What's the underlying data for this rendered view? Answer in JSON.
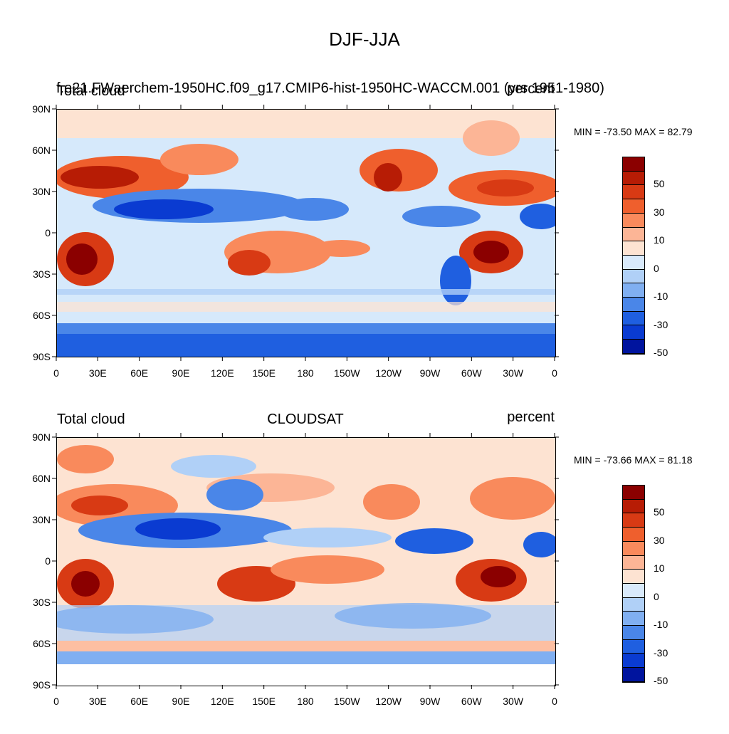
{
  "main_title": "DJF-JJA",
  "panels": [
    {
      "left_string": "Total cloud",
      "center_string": "f.e21.FWaerchem-1950HC.f09_g17.CMIP6-hist-1950HC-WACCM.001 (yrs 1951-1980)",
      "right_string": "percent",
      "stats": "MIN = -73.50 MAX =  82.79"
    },
    {
      "left_string": "Total cloud",
      "center_string": "CLOUDSAT",
      "right_string": "percent",
      "stats": "MIN = -73.66 MAX =  81.18"
    }
  ],
  "lat_labels": [
    "90N",
    "60N",
    "30N",
    "0",
    "30S",
    "60S",
    "90S"
  ],
  "lon_labels": [
    "0",
    "30E",
    "60E",
    "90E",
    "120E",
    "150E",
    "180",
    "150W",
    "120W",
    "90W",
    "60W",
    "30W",
    "0"
  ],
  "colorbar": {
    "labels": [
      "50",
      "30",
      "10",
      "0",
      "-10",
      "-30",
      "-50"
    ],
    "colors": [
      "#8b0000",
      "#b71c05",
      "#d83a14",
      "#ef5f2d",
      "#f98a5c",
      "#fcb596",
      "#fde3d2",
      "#d9eafb",
      "#b0d0f7",
      "#80aff1",
      "#4a86e8",
      "#1f5fe0",
      "#0a3bd1",
      "#00149e"
    ]
  }
}
